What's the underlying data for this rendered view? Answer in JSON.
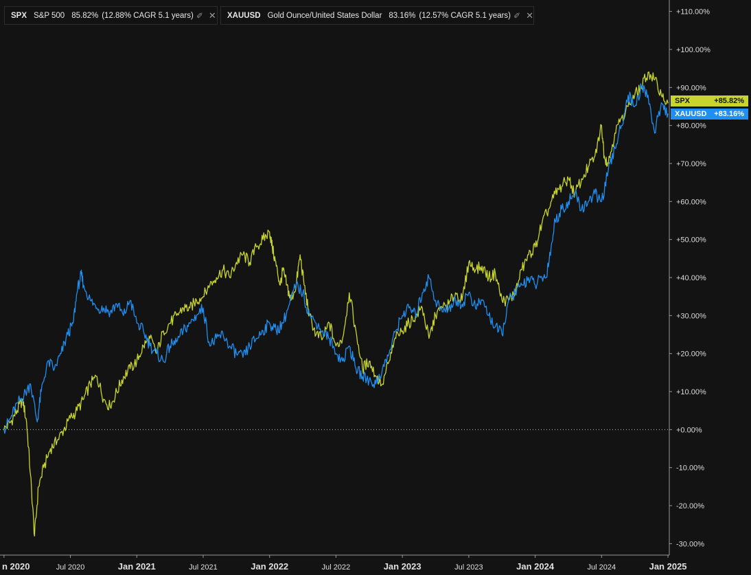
{
  "legend": [
    {
      "symbol": "SPX",
      "name": "S&P 500",
      "pct": "85.82%",
      "cagr": "(12.88% CAGR 5.1 years)",
      "color": "#c8d52e"
    },
    {
      "symbol": "XAUUSD",
      "name": "Gold Ounce/United States Dollar",
      "pct": "83.16%",
      "cagr": "(12.57% CAGR 5.1 years)",
      "color": "#1f8ff2"
    }
  ],
  "axis_tags": [
    {
      "symbol": "SPX",
      "value": "+85.82%",
      "bg": "#c8d52e",
      "fg": "#111111"
    },
    {
      "symbol": "XAUUSD",
      "value": "+83.16%",
      "bg": "#1f8ff2",
      "fg": "#ffffff"
    }
  ],
  "chart_data": {
    "type": "line",
    "x_labels": [
      "n 2020",
      "Jul 2020",
      "Jan 2021",
      "Jul 2021",
      "Jan 2022",
      "Jul 2022",
      "Jan 2023",
      "Jul 2023",
      "Jan 2024",
      "Jul 2024",
      "Jan 2025"
    ],
    "x_label_positions": [
      0,
      0.5,
      1,
      1.5,
      2,
      2.5,
      3,
      3.5,
      4,
      4.5,
      5
    ],
    "y_ticks": [
      "+110.00%",
      "+100.00%",
      "+90.00%",
      "+80.00%",
      "+70.00%",
      "+60.00%",
      "+50.00%",
      "+40.00%",
      "+30.00%",
      "+20.00%",
      "+10.00%",
      "+0.00%",
      "-10.00%",
      "-20.00%",
      "-30.00%"
    ],
    "y_tick_values": [
      110,
      100,
      90,
      80,
      70,
      60,
      50,
      40,
      30,
      20,
      10,
      0,
      -10,
      -20,
      -30
    ],
    "ylim": [
      -33,
      113
    ],
    "xlim": [
      -0.03,
      5.01
    ],
    "baseline": 0,
    "series": [
      {
        "name": "SPX",
        "color": "#c8d52e",
        "points": [
          [
            0,
            0
          ],
          [
            0.05,
            2
          ],
          [
            0.1,
            5
          ],
          [
            0.14,
            8
          ],
          [
            0.17,
            2
          ],
          [
            0.2,
            -12
          ],
          [
            0.23,
            -28
          ],
          [
            0.26,
            -15
          ],
          [
            0.3,
            -10
          ],
          [
            0.35,
            -5
          ],
          [
            0.4,
            -3
          ],
          [
            0.45,
            0
          ],
          [
            0.5,
            3
          ],
          [
            0.55,
            5
          ],
          [
            0.6,
            8
          ],
          [
            0.65,
            12
          ],
          [
            0.7,
            14
          ],
          [
            0.75,
            8
          ],
          [
            0.8,
            6
          ],
          [
            0.85,
            10
          ],
          [
            0.9,
            14
          ],
          [
            0.95,
            16
          ],
          [
            1.0,
            18
          ],
          [
            1.05,
            22
          ],
          [
            1.1,
            24
          ],
          [
            1.15,
            20
          ],
          [
            1.2,
            26
          ],
          [
            1.25,
            28
          ],
          [
            1.3,
            30
          ],
          [
            1.35,
            32
          ],
          [
            1.4,
            32
          ],
          [
            1.45,
            34
          ],
          [
            1.5,
            35
          ],
          [
            1.55,
            38
          ],
          [
            1.6,
            40
          ],
          [
            1.65,
            42
          ],
          [
            1.7,
            40
          ],
          [
            1.75,
            44
          ],
          [
            1.8,
            46
          ],
          [
            1.85,
            44
          ],
          [
            1.9,
            48
          ],
          [
            1.95,
            50
          ],
          [
            2.0,
            52
          ],
          [
            2.02,
            48
          ],
          [
            2.05,
            43
          ],
          [
            2.08,
            38
          ],
          [
            2.1,
            42
          ],
          [
            2.13,
            38
          ],
          [
            2.16,
            34
          ],
          [
            2.2,
            38
          ],
          [
            2.23,
            46
          ],
          [
            2.26,
            38
          ],
          [
            2.3,
            30
          ],
          [
            2.35,
            25
          ],
          [
            2.4,
            24
          ],
          [
            2.45,
            28
          ],
          [
            2.5,
            22
          ],
          [
            2.55,
            24
          ],
          [
            2.6,
            36
          ],
          [
            2.65,
            26
          ],
          [
            2.7,
            16
          ],
          [
            2.75,
            18
          ],
          [
            2.8,
            14
          ],
          [
            2.85,
            12
          ],
          [
            2.9,
            18
          ],
          [
            2.95,
            24
          ],
          [
            3.0,
            26
          ],
          [
            3.05,
            28
          ],
          [
            3.1,
            30
          ],
          [
            3.15,
            32
          ],
          [
            3.2,
            24
          ],
          [
            3.25,
            30
          ],
          [
            3.3,
            32
          ],
          [
            3.35,
            33
          ],
          [
            3.4,
            36
          ],
          [
            3.45,
            34
          ],
          [
            3.5,
            44
          ],
          [
            3.55,
            42
          ],
          [
            3.6,
            43
          ],
          [
            3.65,
            40
          ],
          [
            3.7,
            41
          ],
          [
            3.75,
            34
          ],
          [
            3.8,
            34
          ],
          [
            3.85,
            36
          ],
          [
            3.9,
            42
          ],
          [
            3.95,
            46
          ],
          [
            4.0,
            48
          ],
          [
            4.05,
            54
          ],
          [
            4.1,
            58
          ],
          [
            4.15,
            62
          ],
          [
            4.2,
            64
          ],
          [
            4.25,
            66
          ],
          [
            4.3,
            62
          ],
          [
            4.35,
            66
          ],
          [
            4.4,
            69
          ],
          [
            4.45,
            72
          ],
          [
            4.5,
            80
          ],
          [
            4.52,
            72
          ],
          [
            4.55,
            70
          ],
          [
            4.6,
            78
          ],
          [
            4.65,
            82
          ],
          [
            4.7,
            85
          ],
          [
            4.75,
            88
          ],
          [
            4.8,
            90
          ],
          [
            4.85,
            94
          ],
          [
            4.9,
            92
          ],
          [
            4.95,
            88
          ],
          [
            5.0,
            85.82
          ]
        ]
      },
      {
        "name": "XAUUSD",
        "color": "#1f8ff2",
        "points": [
          [
            0,
            0
          ],
          [
            0.05,
            3
          ],
          [
            0.1,
            7
          ],
          [
            0.15,
            9
          ],
          [
            0.2,
            12
          ],
          [
            0.25,
            2
          ],
          [
            0.28,
            10
          ],
          [
            0.33,
            18
          ],
          [
            0.38,
            16
          ],
          [
            0.43,
            20
          ],
          [
            0.48,
            25
          ],
          [
            0.52,
            28
          ],
          [
            0.55,
            36
          ],
          [
            0.58,
            41
          ],
          [
            0.6,
            38
          ],
          [
            0.65,
            34
          ],
          [
            0.7,
            32
          ],
          [
            0.75,
            32
          ],
          [
            0.8,
            31
          ],
          [
            0.85,
            33
          ],
          [
            0.9,
            30
          ],
          [
            0.95,
            34
          ],
          [
            1.0,
            28
          ],
          [
            1.05,
            26
          ],
          [
            1.1,
            22
          ],
          [
            1.15,
            20
          ],
          [
            1.2,
            18
          ],
          [
            1.25,
            22
          ],
          [
            1.3,
            23
          ],
          [
            1.35,
            26
          ],
          [
            1.4,
            28
          ],
          [
            1.45,
            30
          ],
          [
            1.5,
            32
          ],
          [
            1.55,
            22
          ],
          [
            1.6,
            24
          ],
          [
            1.65,
            25
          ],
          [
            1.7,
            22
          ],
          [
            1.75,
            20
          ],
          [
            1.8,
            19
          ],
          [
            1.85,
            22
          ],
          [
            1.9,
            24
          ],
          [
            1.95,
            26
          ],
          [
            2.0,
            28
          ],
          [
            2.05,
            26
          ],
          [
            2.1,
            28
          ],
          [
            2.15,
            33
          ],
          [
            2.2,
            38
          ],
          [
            2.25,
            36
          ],
          [
            2.3,
            30
          ],
          [
            2.35,
            28
          ],
          [
            2.4,
            26
          ],
          [
            2.45,
            24
          ],
          [
            2.5,
            20
          ],
          [
            2.55,
            18
          ],
          [
            2.6,
            22
          ],
          [
            2.65,
            16
          ],
          [
            2.7,
            14
          ],
          [
            2.75,
            13
          ],
          [
            2.8,
            12
          ],
          [
            2.85,
            16
          ],
          [
            2.9,
            20
          ],
          [
            2.95,
            26
          ],
          [
            3.0,
            30
          ],
          [
            3.05,
            32
          ],
          [
            3.1,
            30
          ],
          [
            3.15,
            36
          ],
          [
            3.2,
            40
          ],
          [
            3.25,
            34
          ],
          [
            3.3,
            31
          ],
          [
            3.35,
            32
          ],
          [
            3.4,
            34
          ],
          [
            3.45,
            33
          ],
          [
            3.5,
            36
          ],
          [
            3.55,
            32
          ],
          [
            3.6,
            34
          ],
          [
            3.65,
            30
          ],
          [
            3.7,
            27
          ],
          [
            3.75,
            25
          ],
          [
            3.8,
            34
          ],
          [
            3.85,
            36
          ],
          [
            3.9,
            38
          ],
          [
            3.95,
            40
          ],
          [
            4.0,
            38
          ],
          [
            4.05,
            40
          ],
          [
            4.08,
            40
          ],
          [
            4.12,
            48
          ],
          [
            4.15,
            55
          ],
          [
            4.2,
            58
          ],
          [
            4.25,
            60
          ],
          [
            4.3,
            62
          ],
          [
            4.35,
            58
          ],
          [
            4.4,
            60
          ],
          [
            4.45,
            62
          ],
          [
            4.5,
            60
          ],
          [
            4.55,
            68
          ],
          [
            4.6,
            74
          ],
          [
            4.65,
            80
          ],
          [
            4.7,
            88
          ],
          [
            4.75,
            85
          ],
          [
            4.8,
            90
          ],
          [
            4.85,
            88
          ],
          [
            4.9,
            78
          ],
          [
            4.95,
            86
          ],
          [
            5.0,
            83.16
          ]
        ]
      }
    ]
  }
}
